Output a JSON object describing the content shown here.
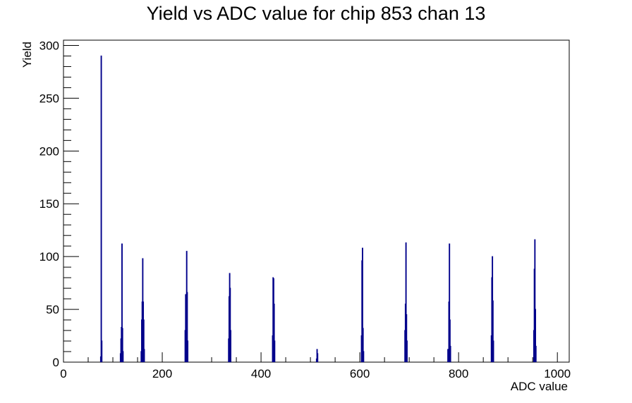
{
  "chart_data": {
    "type": "bar",
    "title": "Yield vs ADC value for chip 853 chan 13",
    "xlabel": "ADC value",
    "ylabel": "Yield",
    "xlim": [
      0,
      1024
    ],
    "ylim": [
      0,
      305
    ],
    "x_ticks": [
      0,
      200,
      400,
      600,
      800,
      1000
    ],
    "y_ticks": [
      0,
      50,
      100,
      150,
      200,
      250,
      300
    ],
    "grid": false,
    "line_color": "#00008b",
    "series": [
      {
        "bins": [
          [
            75,
            5
          ],
          [
            76,
            290
          ],
          [
            77,
            20
          ],
          [
            115,
            8
          ],
          [
            116,
            22
          ],
          [
            117,
            33
          ],
          [
            118,
            112
          ],
          [
            119,
            32
          ],
          [
            120,
            10
          ],
          [
            157,
            10
          ],
          [
            158,
            40
          ],
          [
            159,
            57
          ],
          [
            160,
            98
          ],
          [
            161,
            57
          ],
          [
            162,
            40
          ],
          [
            163,
            12
          ],
          [
            246,
            30
          ],
          [
            247,
            64
          ],
          [
            248,
            60
          ],
          [
            249,
            105
          ],
          [
            250,
            66
          ],
          [
            251,
            20
          ],
          [
            334,
            22
          ],
          [
            335,
            62
          ],
          [
            336,
            84
          ],
          [
            337,
            70
          ],
          [
            338,
            30
          ],
          [
            423,
            25
          ],
          [
            424,
            80
          ],
          [
            425,
            79
          ],
          [
            426,
            55
          ],
          [
            427,
            20
          ],
          [
            512,
            3
          ],
          [
            513,
            12
          ],
          [
            514,
            8
          ],
          [
            603,
            25
          ],
          [
            604,
            96
          ],
          [
            605,
            108
          ],
          [
            606,
            32
          ],
          [
            607,
            10
          ],
          [
            691,
            30
          ],
          [
            692,
            55
          ],
          [
            693,
            113
          ],
          [
            694,
            45
          ],
          [
            695,
            20
          ],
          [
            778,
            12
          ],
          [
            779,
            10
          ],
          [
            780,
            57
          ],
          [
            781,
            112
          ],
          [
            782,
            40
          ],
          [
            783,
            15
          ],
          [
            866,
            25
          ],
          [
            867,
            80
          ],
          [
            868,
            100
          ],
          [
            869,
            58
          ],
          [
            870,
            20
          ],
          [
            952,
            30
          ],
          [
            953,
            88
          ],
          [
            954,
            116
          ],
          [
            955,
            50
          ],
          [
            956,
            15
          ]
        ]
      }
    ]
  }
}
